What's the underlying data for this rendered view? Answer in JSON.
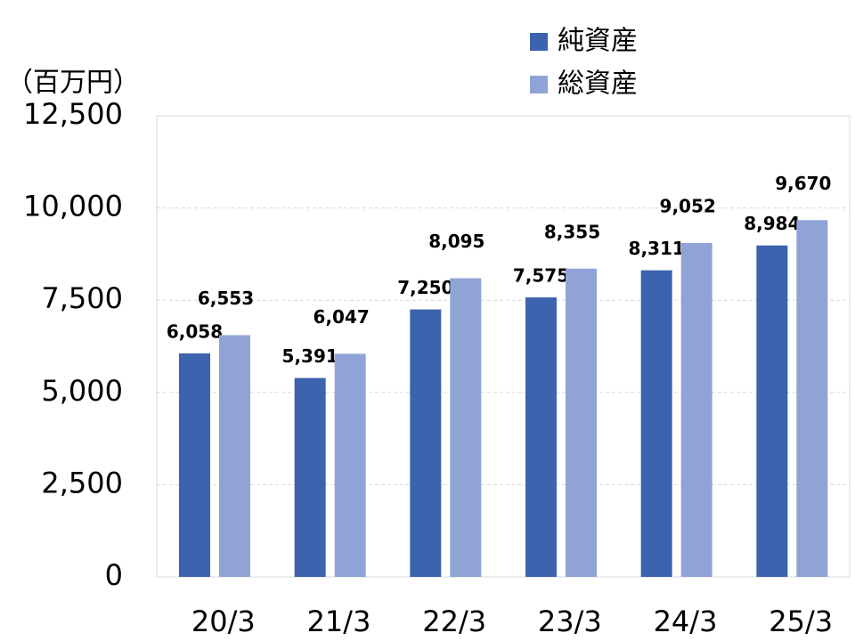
{
  "chart_data": {
    "type": "bar",
    "y_axis_label": "（百万円）",
    "categories": [
      "20/3",
      "21/3",
      "22/3",
      "23/3",
      "24/3",
      "25/3"
    ],
    "series": [
      {
        "name": "純資産",
        "color": "#3c63ae",
        "values": [
          6058,
          5391,
          7250,
          7575,
          8311,
          8984
        ],
        "value_labels": [
          "6,058",
          "5,391",
          "7,250",
          "7,575",
          "8,311",
          "8,984"
        ]
      },
      {
        "name": "総資産",
        "color": "#8fa3d6",
        "values": [
          6553,
          6047,
          8095,
          8355,
          9052,
          9670
        ],
        "value_labels": [
          "6,553",
          "6,047",
          "8,095",
          "8,355",
          "9,052",
          "9,670"
        ]
      }
    ],
    "ylim": [
      0,
      12500
    ],
    "yticks": [
      0,
      {
        "value": 2500,
        "label": "2,500"
      },
      {
        "value": 5000,
        "label": "5,000"
      },
      {
        "value": 7500,
        "label": "7,500"
      },
      {
        "value": 10000,
        "label": "10,000"
      },
      {
        "value": 12500,
        "label": "12,500"
      }
    ],
    "grid": true
  }
}
